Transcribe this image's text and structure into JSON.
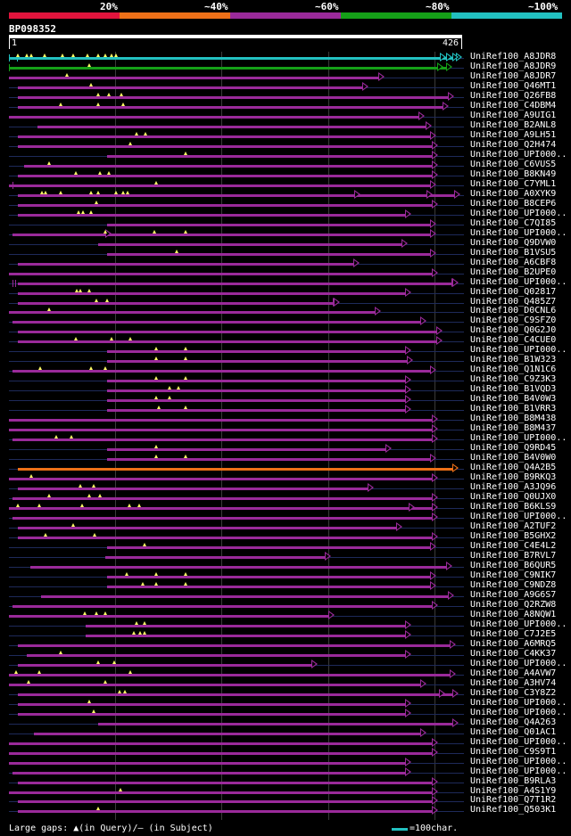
{
  "header": {
    "percent_labels": [
      "20%",
      "~40%",
      "~60%",
      "~80%",
      "~100%"
    ],
    "colors": [
      "#e0143c",
      "#ee7018",
      "#9a2a9a",
      "#15a018",
      "#22c0c0"
    ],
    "query_id": "BP098352",
    "length_start": "1",
    "length_end": "426"
  },
  "rows": [
    {
      "label": "UniRef100_A8JDR8",
      "color": "#22c0c0",
      "s": 10,
      "e": 513,
      "m": [
        20,
        30,
        35,
        50,
        70,
        82,
        98,
        110,
        118,
        125,
        130
      ],
      "bars": [
        10,
        19
      ],
      "arrows": [
        493,
        500,
        511
      ]
    },
    {
      "label": "UniRef100_A8JDR9",
      "color": "#15a018",
      "s": 10,
      "e": 506,
      "m": [
        100
      ],
      "bars": [
        10
      ],
      "arrows": [
        490,
        500
      ]
    },
    {
      "label": "UniRef100_A8JDR7",
      "color": "#9a2a9a",
      "s": 10,
      "e": 430,
      "m": [
        75
      ],
      "bars": [],
      "arrows": [
        424
      ]
    },
    {
      "label": "UniRef100_Q46MT1",
      "color": "#9a2a9a",
      "s": 20,
      "e": 412,
      "m": [
        102
      ],
      "bars": [],
      "arrows": []
    },
    {
      "label": "UniRef100_Q26FB8",
      "color": "#9a2a9a",
      "s": 20,
      "e": 508,
      "m": [
        110,
        122,
        136
      ],
      "bars": [],
      "arrows": []
    },
    {
      "label": "UniRef100_C4DBM4",
      "color": "#9a2a9a",
      "s": 20,
      "e": 502,
      "m": [
        68,
        110,
        138
      ],
      "bars": [],
      "arrows": []
    },
    {
      "label": "UniRef100_A9UIG1",
      "color": "#9a2a9a",
      "s": 10,
      "e": 475,
      "m": [],
      "bars": [],
      "arrows": []
    },
    {
      "label": "UniRef100_B2ANL8",
      "color": "#9a2a9a",
      "s": 42,
      "e": 483,
      "m": [],
      "bars": [],
      "arrows": []
    },
    {
      "label": "UniRef100_A9LH51",
      "color": "#9a2a9a",
      "s": 20,
      "e": 488,
      "m": [
        153,
        163
      ],
      "bars": [],
      "arrows": []
    },
    {
      "label": "UniRef100_Q2H474",
      "color": "#9a2a9a",
      "s": 20,
      "e": 490,
      "m": [
        146
      ],
      "bars": [],
      "arrows": []
    },
    {
      "label": "UniRef100_UPI000..",
      "color": "#9a2a9a",
      "s": 120,
      "e": 490,
      "m": [
        208
      ],
      "bars": [],
      "arrows": []
    },
    {
      "label": "UniRef100_C6VUS5",
      "color": "#9a2a9a",
      "s": 27,
      "e": 490,
      "m": [
        55
      ],
      "bars": [],
      "arrows": []
    },
    {
      "label": "UniRef100_B8KN49",
      "color": "#9a2a9a",
      "s": 20,
      "e": 490,
      "m": [
        85,
        112,
        122
      ],
      "bars": [],
      "arrows": []
    },
    {
      "label": "UniRef100_C7YML1",
      "color": "#9a2a9a",
      "s": 10,
      "e": 488,
      "m": [
        175
      ],
      "bars": [
        14
      ],
      "arrows": []
    },
    {
      "label": "UniRef100_A0XYK9",
      "color": "#9a2a9a",
      "s": 20,
      "e": 515,
      "m": [
        47,
        51,
        68,
        102,
        110,
        130,
        138,
        143
      ],
      "bars": [],
      "arrows": [
        397,
        478
      ]
    },
    {
      "label": "UniRef100_B8CEP6",
      "color": "#9a2a9a",
      "s": 20,
      "e": 490,
      "m": [
        108
      ],
      "bars": [],
      "arrows": []
    },
    {
      "label": "UniRef100_UPI000..",
      "color": "#9a2a9a",
      "s": 20,
      "e": 460,
      "m": [
        88,
        93,
        102
      ],
      "bars": [],
      "arrows": []
    },
    {
      "label": "UniRef100_C7QI85",
      "color": "#9a2a9a",
      "s": 120,
      "e": 488,
      "m": [],
      "bars": [],
      "arrows": []
    },
    {
      "label": "UniRef100_UPI000..",
      "color": "#9a2a9a",
      "s": 14,
      "e": 488,
      "m": [
        118,
        173,
        208
      ],
      "bars": [],
      "arrows": [
        118
      ]
    },
    {
      "label": "UniRef100_Q9DVW0",
      "color": "#9a2a9a",
      "s": 110,
      "e": 456,
      "m": [],
      "bars": [],
      "arrows": []
    },
    {
      "label": "UniRef100_B1VSU5",
      "color": "#9a2a9a",
      "s": 120,
      "e": 488,
      "m": [
        198
      ],
      "bars": [],
      "arrows": []
    },
    {
      "label": "UniRef100_A6CBF8",
      "color": "#9a2a9a",
      "s": 20,
      "e": 402,
      "m": [],
      "bars": [],
      "arrows": []
    },
    {
      "label": "UniRef100_B2UPE0",
      "color": "#9a2a9a",
      "s": 10,
      "e": 490,
      "m": [],
      "bars": [],
      "arrows": []
    },
    {
      "label": "UniRef100_UPI000..",
      "color": "#9a2a9a",
      "s": 20,
      "e": 513,
      "m": [],
      "bars": [
        14,
        17
      ],
      "arrows": [
        506
      ]
    },
    {
      "label": "UniRef100_Q02817",
      "color": "#9a2a9a",
      "s": 20,
      "e": 460,
      "m": [
        86,
        90,
        100
      ],
      "bars": [],
      "arrows": []
    },
    {
      "label": "UniRef100_Q485Z7",
      "color": "#9a2a9a",
      "s": 20,
      "e": 380,
      "m": [
        108,
        120
      ],
      "bars": [],
      "arrows": [
        373
      ]
    },
    {
      "label": "UniRef100_D0CNL6",
      "color": "#9a2a9a",
      "s": 10,
      "e": 426,
      "m": [
        55
      ],
      "bars": [],
      "arrows": []
    },
    {
      "label": "UniRef100_C9SFZ0",
      "color": "#9a2a9a",
      "s": 14,
      "e": 477,
      "m": [],
      "bars": [],
      "arrows": []
    },
    {
      "label": "UniRef100_Q0G2J0",
      "color": "#9a2a9a",
      "s": 20,
      "e": 495,
      "m": [],
      "bars": [],
      "arrows": []
    },
    {
      "label": "UniRef100_C4CUE0",
      "color": "#9a2a9a",
      "s": 20,
      "e": 495,
      "m": [
        85,
        125,
        146
      ],
      "bars": [],
      "arrows": []
    },
    {
      "label": "UniRef100_UPI000..",
      "color": "#9a2a9a",
      "s": 120,
      "e": 460,
      "m": [
        175,
        208
      ],
      "bars": [],
      "arrows": []
    },
    {
      "label": "UniRef100_B1W323",
      "color": "#9a2a9a",
      "s": 120,
      "e": 462,
      "m": [
        175,
        208
      ],
      "bars": [],
      "arrows": []
    },
    {
      "label": "UniRef100_Q1N1C6",
      "color": "#9a2a9a",
      "s": 14,
      "e": 488,
      "m": [
        45,
        102,
        118
      ],
      "bars": [],
      "arrows": []
    },
    {
      "label": "UniRef100_C9Z3K3",
      "color": "#9a2a9a",
      "s": 120,
      "e": 460,
      "m": [
        175,
        208
      ],
      "bars": [],
      "arrows": []
    },
    {
      "label": "UniRef100_B1VQD3",
      "color": "#9a2a9a",
      "s": 120,
      "e": 460,
      "m": [
        190,
        200
      ],
      "bars": [],
      "arrows": []
    },
    {
      "label": "UniRef100_B4V0W3",
      "color": "#9a2a9a",
      "s": 120,
      "e": 460,
      "m": [
        175,
        190
      ],
      "bars": [],
      "arrows": []
    },
    {
      "label": "UniRef100_B1VRR3",
      "color": "#9a2a9a",
      "s": 120,
      "e": 460,
      "m": [
        178,
        208
      ],
      "bars": [],
      "arrows": []
    },
    {
      "label": "UniRef100_B8M438",
      "color": "#9a2a9a",
      "s": 10,
      "e": 490,
      "m": [],
      "bars": [],
      "arrows": []
    },
    {
      "label": "UniRef100_B8M437",
      "color": "#9a2a9a",
      "s": 10,
      "e": 490,
      "m": [],
      "bars": [],
      "arrows": []
    },
    {
      "label": "UniRef100_UPI000..",
      "color": "#9a2a9a",
      "s": 14,
      "e": 490,
      "m": [
        63,
        80
      ],
      "bars": [],
      "arrows": []
    },
    {
      "label": "UniRef100_Q9RD45",
      "color": "#9a2a9a",
      "s": 120,
      "e": 438,
      "m": [
        175
      ],
      "bars": [],
      "arrows": []
    },
    {
      "label": "UniRef100_B4V0W0",
      "color": "#9a2a9a",
      "s": 120,
      "e": 488,
      "m": [
        175,
        208
      ],
      "bars": [],
      "arrows": []
    },
    {
      "label": "UniRef100_Q4A2B5",
      "color": "#ee7018",
      "s": 20,
      "e": 513,
      "m": [],
      "bars": [],
      "arrows": []
    },
    {
      "label": "UniRef100_B9RKQ3",
      "color": "#9a2a9a",
      "s": 10,
      "e": 490,
      "m": [
        35
      ],
      "bars": [],
      "arrows": []
    },
    {
      "label": "UniRef100_A3JQ96",
      "color": "#9a2a9a",
      "s": 20,
      "e": 418,
      "m": [
        90,
        105
      ],
      "bars": [],
      "arrows": []
    },
    {
      "label": "UniRef100_Q0UJX0",
      "color": "#9a2a9a",
      "s": 14,
      "e": 490,
      "m": [
        55,
        100,
        112
      ],
      "bars": [],
      "arrows": []
    },
    {
      "label": "UniRef100_B6KLS9",
      "color": "#9a2a9a",
      "s": 10,
      "e": 490,
      "m": [
        20,
        44,
        92,
        145,
        156
      ],
      "bars": [],
      "arrows": [
        458
      ]
    },
    {
      "label": "UniRef100_UPI000..",
      "color": "#9a2a9a",
      "s": 14,
      "e": 490,
      "m": [],
      "bars": [],
      "arrows": []
    },
    {
      "label": "UniRef100_A2TUF2",
      "color": "#9a2a9a",
      "s": 20,
      "e": 450,
      "m": [
        82
      ],
      "bars": [],
      "arrows": []
    },
    {
      "label": "UniRef100_B5GHX2",
      "color": "#9a2a9a",
      "s": 20,
      "e": 490,
      "m": [
        51,
        106
      ],
      "bars": [],
      "arrows": []
    },
    {
      "label": "UniRef100_C4E4L2",
      "color": "#9a2a9a",
      "s": 120,
      "e": 488,
      "m": [
        162
      ],
      "bars": [],
      "arrows": []
    },
    {
      "label": "UniRef100_B7RVL7",
      "color": "#9a2a9a",
      "s": 118,
      "e": 370,
      "m": [],
      "bars": [],
      "arrows": []
    },
    {
      "label": "UniRef100_B6QUR5",
      "color": "#9a2a9a",
      "s": 34,
      "e": 506,
      "m": [],
      "bars": [],
      "arrows": []
    },
    {
      "label": "UniRef100_C9NIK7",
      "color": "#9a2a9a",
      "s": 120,
      "e": 488,
      "m": [
        142,
        175,
        208
      ],
      "bars": [],
      "arrows": []
    },
    {
      "label": "UniRef100_C9NDZ8",
      "color": "#9a2a9a",
      "s": 120,
      "e": 488,
      "m": [
        160,
        175,
        208
      ],
      "bars": [],
      "arrows": []
    },
    {
      "label": "UniRef100_A9G6S7",
      "color": "#9a2a9a",
      "s": 46,
      "e": 508,
      "m": [],
      "bars": [],
      "arrows": []
    },
    {
      "label": "UniRef100_Q2RZW8",
      "color": "#9a2a9a",
      "s": 14,
      "e": 490,
      "m": [],
      "bars": [],
      "arrows": []
    },
    {
      "label": "UniRef100_A8NQW1",
      "color": "#9a2a9a",
      "s": 10,
      "e": 374,
      "m": [
        95,
        108,
        118
      ],
      "bars": [],
      "arrows": []
    },
    {
      "label": "UniRef100_UPI000..",
      "color": "#9a2a9a",
      "s": 96,
      "e": 460,
      "m": [
        153,
        162
      ],
      "bars": [],
      "arrows": []
    },
    {
      "label": "UniRef100_C7J2E5",
      "color": "#9a2a9a",
      "s": 96,
      "e": 460,
      "m": [
        150,
        157,
        162
      ],
      "bars": [],
      "arrows": []
    },
    {
      "label": "UniRef100_A6MRQ5",
      "color": "#9a2a9a",
      "s": 20,
      "e": 510,
      "m": [],
      "bars": [],
      "arrows": []
    },
    {
      "label": "UniRef100_C4KK37",
      "color": "#9a2a9a",
      "s": 30,
      "e": 460,
      "m": [
        68
      ],
      "bars": [],
      "arrows": []
    },
    {
      "label": "UniRef100_UPI000..",
      "color": "#9a2a9a",
      "s": 20,
      "e": 355,
      "m": [
        110,
        128
      ],
      "bars": [],
      "arrows": []
    },
    {
      "label": "UniRef100_A4AVW7",
      "color": "#9a2a9a",
      "s": 10,
      "e": 510,
      "m": [
        18,
        44,
        146
      ],
      "bars": [],
      "arrows": []
    },
    {
      "label": "UniRef100_A3HV74",
      "color": "#9a2a9a",
      "s": 10,
      "e": 477,
      "m": [
        32,
        118
      ],
      "bars": [],
      "arrows": []
    },
    {
      "label": "UniRef100_C3Y8Z2",
      "color": "#9a2a9a",
      "s": 20,
      "e": 513,
      "m": [
        134,
        140
      ],
      "bars": [],
      "arrows": [
        492
      ]
    },
    {
      "label": "UniRef100_UPI000..",
      "color": "#9a2a9a",
      "s": 20,
      "e": 460,
      "m": [
        100
      ],
      "bars": [],
      "arrows": []
    },
    {
      "label": "UniRef100_UPI000..",
      "color": "#9a2a9a",
      "s": 20,
      "e": 460,
      "m": [
        105
      ],
      "bars": [],
      "arrows": []
    },
    {
      "label": "UniRef100_Q4A263",
      "color": "#9a2a9a",
      "s": 110,
      "e": 513,
      "m": [],
      "bars": [],
      "arrows": []
    },
    {
      "label": "UniRef100_Q01AC1",
      "color": "#9a2a9a",
      "s": 38,
      "e": 477,
      "m": [],
      "bars": [],
      "arrows": []
    },
    {
      "label": "UniRef100_UPI000..",
      "color": "#9a2a9a",
      "s": 10,
      "e": 490,
      "m": [],
      "bars": [],
      "arrows": []
    },
    {
      "label": "UniRef100_C9S9T1",
      "color": "#9a2a9a",
      "s": 10,
      "e": 490,
      "m": [],
      "bars": [],
      "arrows": []
    },
    {
      "label": "UniRef100_UPI000..",
      "color": "#9a2a9a",
      "s": 10,
      "e": 460,
      "m": [],
      "bars": [],
      "arrows": []
    },
    {
      "label": "UniRef100_UPI000..",
      "color": "#9a2a9a",
      "s": 14,
      "e": 460,
      "m": [],
      "bars": [],
      "arrows": []
    },
    {
      "label": "UniRef100_B9RLA3",
      "color": "#9a2a9a",
      "s": 20,
      "e": 490,
      "m": [],
      "bars": [],
      "arrows": []
    },
    {
      "label": "UniRef100_A4S1Y9",
      "color": "#9a2a9a",
      "s": 10,
      "e": 490,
      "m": [
        135
      ],
      "bars": [],
      "arrows": []
    },
    {
      "label": "UniRef100_Q7T1R2",
      "color": "#9a2a9a",
      "s": 20,
      "e": 490,
      "m": [],
      "bars": [],
      "arrows": []
    },
    {
      "label": "UniRef100_Q503K1",
      "color": "#9a2a9a",
      "s": 20,
      "e": 490,
      "m": [
        110
      ],
      "bars": [],
      "arrows": []
    }
  ],
  "legend": {
    "text": "Large gaps: ▲(in Query)/– (in Subject)",
    "scale": "=100char."
  }
}
